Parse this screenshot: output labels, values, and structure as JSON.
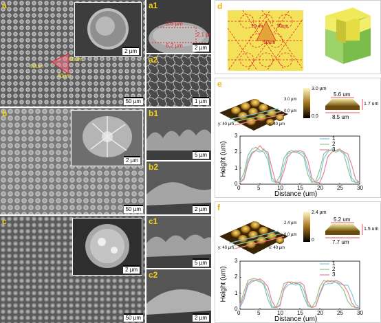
{
  "panels": {
    "a": {
      "label": "a",
      "scale": "50 µm",
      "inset_scale": "2 µm",
      "pitch": [
        "40um",
        "40um",
        "40um"
      ]
    },
    "a1": {
      "label": "a1",
      "scale": "2 µm",
      "dims": [
        "3.6 µm",
        "2.1 µm",
        "6.2 µm"
      ]
    },
    "a2": {
      "label": "a2",
      "scale": "1 µm"
    },
    "b": {
      "label": "b",
      "scale": "50 µm",
      "inset_scale": "2 µm"
    },
    "b1": {
      "label": "b1",
      "scale": "5 µm"
    },
    "b2": {
      "label": "b2",
      "scale": "2 µm"
    },
    "c": {
      "label": "c",
      "scale": "50 µm",
      "inset_scale": "2 µm"
    },
    "c1": {
      "label": "c1",
      "scale": "5 µm"
    },
    "c2": {
      "label": "c2",
      "scale": "2 µm"
    },
    "d": {
      "label": "d",
      "dims": [
        "10um",
        "10um",
        "10um"
      ]
    },
    "e": {
      "label": "e",
      "afm_y": "y: 40 µm",
      "afm_x": "x: 40 µm",
      "cb_top": "3.0 µm",
      "cb_mid": "3.0 µm",
      "cb_low": "0.0 µm",
      "cb_zero": "0.0",
      "shape_top": "5.6 um",
      "shape_bottom": "8.5 um",
      "shape_height": "1.7 um"
    },
    "f": {
      "label": "f",
      "afm_y": "y: 40 µm",
      "afm_x": "x: 40 µm",
      "cb_top": "2.4 µm",
      "cb_mid": "2.4 µm",
      "cb_low": "0.0 µm",
      "cb_zero": "0",
      "shape_top": "5.2 um",
      "shape_bottom": "7.7 um",
      "shape_height": "1.5 um"
    }
  },
  "colors": {
    "s1": "#7ec8e3",
    "s2": "#8cc48c",
    "s3": "#e8828a"
  },
  "chart_data": [
    {
      "type": "line",
      "xlabel": "Distance (um)",
      "ylabel": "Height (um)",
      "xlim": [
        0,
        30
      ],
      "ylim": [
        0,
        3
      ],
      "xticks": [
        "0",
        "5",
        "10",
        "15",
        "20",
        "25",
        "30"
      ],
      "yticks": [
        "0",
        "1",
        "2",
        "3"
      ],
      "legend": "top-right",
      "x": [
        0,
        1,
        2,
        3,
        4,
        5,
        6,
        7,
        8,
        9,
        10,
        11,
        12,
        13,
        14,
        15,
        16,
        17,
        18,
        19,
        20,
        21,
        22,
        23,
        24,
        25,
        26,
        27,
        28,
        29,
        30
      ],
      "series": [
        {
          "name": "1",
          "values": [
            0.1,
            0.4,
            1.5,
            2.0,
            2.1,
            2.0,
            2.2,
            1.8,
            0.4,
            0.1,
            0.2,
            1.2,
            1.9,
            2.0,
            2.1,
            2.0,
            1.9,
            1.0,
            0.2,
            0.1,
            0.4,
            1.6,
            2.0,
            2.2,
            2.1,
            2.1,
            2.0,
            1.6,
            0.4,
            0.1,
            0.1
          ]
        },
        {
          "name": "2",
          "values": [
            0.2,
            0.7,
            1.8,
            2.2,
            2.3,
            2.1,
            2.0,
            1.5,
            0.2,
            0.1,
            0.5,
            1.6,
            2.0,
            2.1,
            2.0,
            1.9,
            1.7,
            0.6,
            0.1,
            0.2,
            0.9,
            1.9,
            2.1,
            2.1,
            2.0,
            2.1,
            1.9,
            1.0,
            0.2,
            0.1,
            0.2
          ]
        },
        {
          "name": "3",
          "values": [
            0.1,
            0.3,
            1.3,
            1.9,
            2.1,
            2.4,
            2.1,
            2.0,
            1.0,
            0.1,
            0.1,
            0.8,
            1.7,
            2.0,
            2.0,
            2.1,
            2.0,
            1.5,
            0.4,
            0.1,
            0.1,
            0.7,
            1.7,
            2.0,
            2.1,
            2.2,
            2.0,
            1.9,
            1.2,
            0.3,
            0.1
          ]
        }
      ]
    },
    {
      "type": "line",
      "xlabel": "Distance (um)",
      "ylabel": "Height (um)",
      "xlim": [
        0,
        30
      ],
      "ylim": [
        0,
        3
      ],
      "xticks": [
        "0",
        "5",
        "10",
        "15",
        "20",
        "25",
        "30"
      ],
      "yticks": [
        "0",
        "1",
        "2",
        "3"
      ],
      "legend": "top-right",
      "x": [
        0,
        1,
        2,
        3,
        4,
        5,
        6,
        7,
        8,
        9,
        10,
        11,
        12,
        13,
        14,
        15,
        16,
        17,
        18,
        19,
        20,
        21,
        22,
        23,
        24,
        25,
        26,
        27,
        28,
        29,
        30
      ],
      "series": [
        {
          "name": "1",
          "values": [
            0.1,
            0.6,
            1.5,
            1.7,
            1.8,
            1.7,
            1.6,
            1.0,
            0.2,
            0.1,
            0.3,
            1.2,
            1.5,
            1.6,
            1.5,
            1.6,
            1.2,
            0.3,
            0.1,
            0.2,
            0.9,
            1.5,
            1.6,
            1.6,
            1.7,
            1.6,
            1.5,
            1.5,
            1.0,
            0.3,
            0.1
          ]
        },
        {
          "name": "2",
          "values": [
            0.3,
            1.1,
            1.8,
            1.9,
            1.9,
            1.8,
            1.5,
            0.6,
            0.1,
            0.1,
            0.7,
            1.6,
            1.7,
            1.6,
            1.7,
            1.5,
            0.8,
            0.2,
            0.1,
            0.5,
            1.4,
            1.8,
            1.7,
            1.8,
            1.7,
            1.5,
            1.2,
            0.5,
            0.2,
            0.1,
            0.1
          ]
        },
        {
          "name": "3",
          "values": [
            0.2,
            0.8,
            1.6,
            1.8,
            1.8,
            1.9,
            1.7,
            1.4,
            0.5,
            0.1,
            0.2,
            1.3,
            1.7,
            1.7,
            1.6,
            1.7,
            1.5,
            0.5,
            0.1,
            0.2,
            1.0,
            1.6,
            1.8,
            1.7,
            1.8,
            1.7,
            1.5,
            1.1,
            0.4,
            0.1,
            0.1
          ]
        }
      ]
    }
  ]
}
